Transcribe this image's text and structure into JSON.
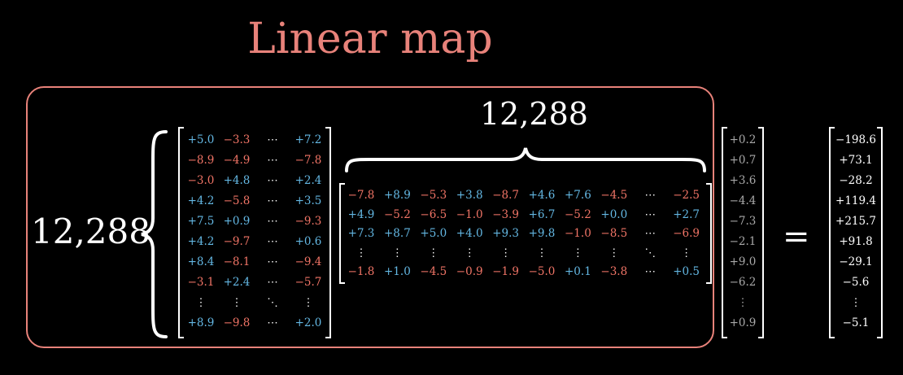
{
  "title": "Linear map",
  "rows_label": "12,288",
  "cols_label": "12,288",
  "equals": "=",
  "left_matrix": {
    "rows": [
      [
        "+5.0",
        "−3.3",
        "⋯",
        "+7.2"
      ],
      [
        "−8.9",
        "−4.9",
        "⋯",
        "−7.8"
      ],
      [
        "−3.0",
        "+4.8",
        "⋯",
        "+2.4"
      ],
      [
        "+4.2",
        "−5.8",
        "⋯",
        "+3.5"
      ],
      [
        "+7.5",
        "+0.9",
        "⋯",
        "−9.3"
      ],
      [
        "+4.2",
        "−9.7",
        "⋯",
        "+0.6"
      ],
      [
        "+8.4",
        "−8.1",
        "⋯",
        "−9.4"
      ],
      [
        "−3.1",
        "+2.4",
        "⋯",
        "−5.7"
      ],
      [
        "⋮",
        "⋮",
        "⋱",
        "⋮"
      ],
      [
        "+8.9",
        "−9.8",
        "⋯",
        "+2.0"
      ]
    ]
  },
  "wide_matrix": {
    "rows": [
      [
        "−7.8",
        "+8.9",
        "−5.3",
        "+3.8",
        "−8.7",
        "+4.6",
        "+7.6",
        "−4.5",
        "⋯",
        "−2.5"
      ],
      [
        "+4.9",
        "−5.2",
        "−6.5",
        "−1.0",
        "−3.9",
        "+6.7",
        "−5.2",
        "+0.0",
        "⋯",
        "+2.7"
      ],
      [
        "+7.3",
        "+8.7",
        "+5.0",
        "+4.0",
        "+9.3",
        "+9.8",
        "−1.0",
        "−8.5",
        "⋯",
        "−6.9"
      ],
      [
        "⋮",
        "⋮",
        "⋮",
        "⋮",
        "⋮",
        "⋮",
        "⋮",
        "⋮",
        "⋱",
        "⋮"
      ],
      [
        "−1.8",
        "+1.0",
        "−4.5",
        "−0.9",
        "−1.9",
        "−5.0",
        "+0.1",
        "−3.8",
        "⋯",
        "+0.5"
      ]
    ]
  },
  "input_vector": [
    "+0.2",
    "+0.7",
    "+3.6",
    "−4.4",
    "−7.3",
    "−2.1",
    "+9.0",
    "−6.2",
    "⋮",
    "+0.9"
  ],
  "output_vector": [
    "−198.6",
    "+73.1",
    "−28.2",
    "+119.4",
    "+215.7",
    "+91.8",
    "−29.1",
    "−5.6",
    "⋮",
    "−5.1"
  ],
  "colors": {
    "accent": "#e8827a",
    "positive": "#64b8e4",
    "negative": "#f07466"
  }
}
